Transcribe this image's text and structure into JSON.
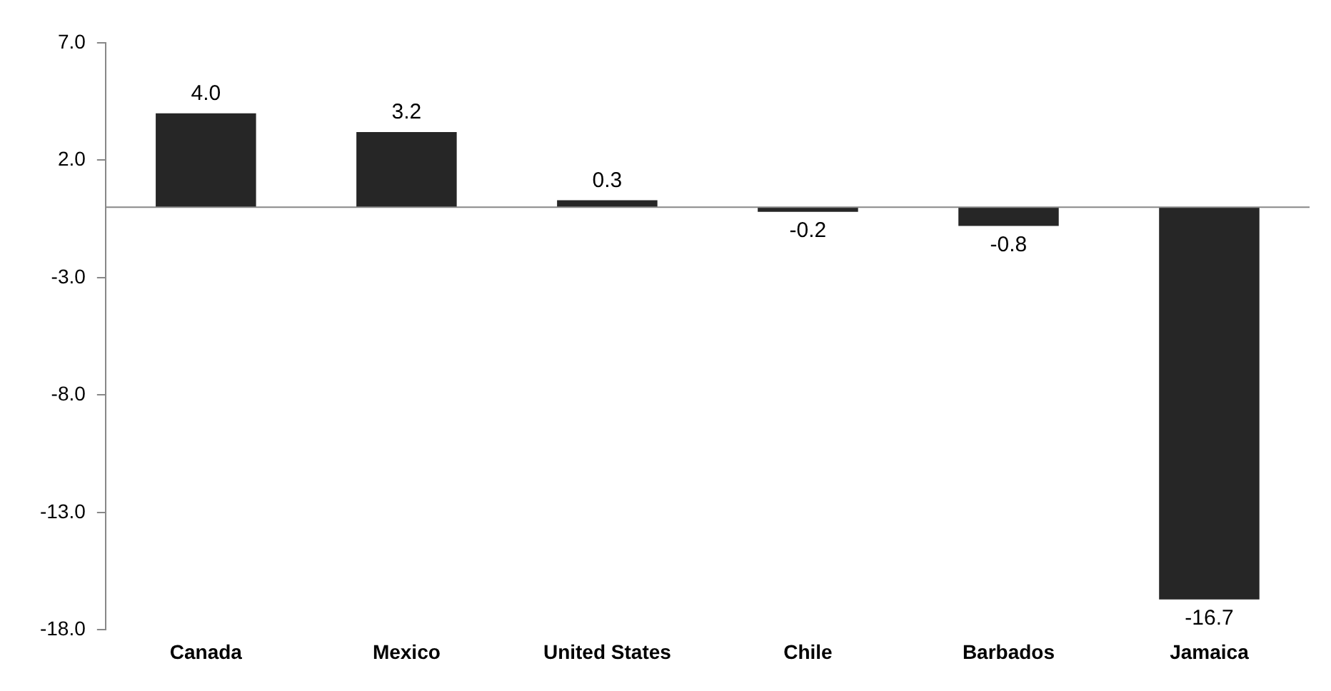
{
  "chart_data": {
    "type": "bar",
    "categories": [
      "Canada",
      "Mexico",
      "United States",
      "Chile",
      "Barbados",
      "Jamaica"
    ],
    "values": [
      4.0,
      3.2,
      0.3,
      -0.2,
      -0.8,
      -16.7
    ],
    "value_labels": [
      "4.0",
      "3.2",
      "0.3",
      "-0.2",
      "-0.8",
      "-16.7"
    ],
    "color": "#262626",
    "ylim": [
      -18,
      7
    ],
    "yticks": [
      {
        "value": -18,
        "label": "-18.0"
      },
      {
        "value": -13,
        "label": "-13.0"
      },
      {
        "value": -8,
        "label": "-8.0"
      },
      {
        "value": -3,
        "label": "-3.0"
      },
      {
        "value": 2,
        "label": "2.0"
      },
      {
        "value": 7,
        "label": "7.0"
      }
    ],
    "grid": false,
    "legend": false
  }
}
